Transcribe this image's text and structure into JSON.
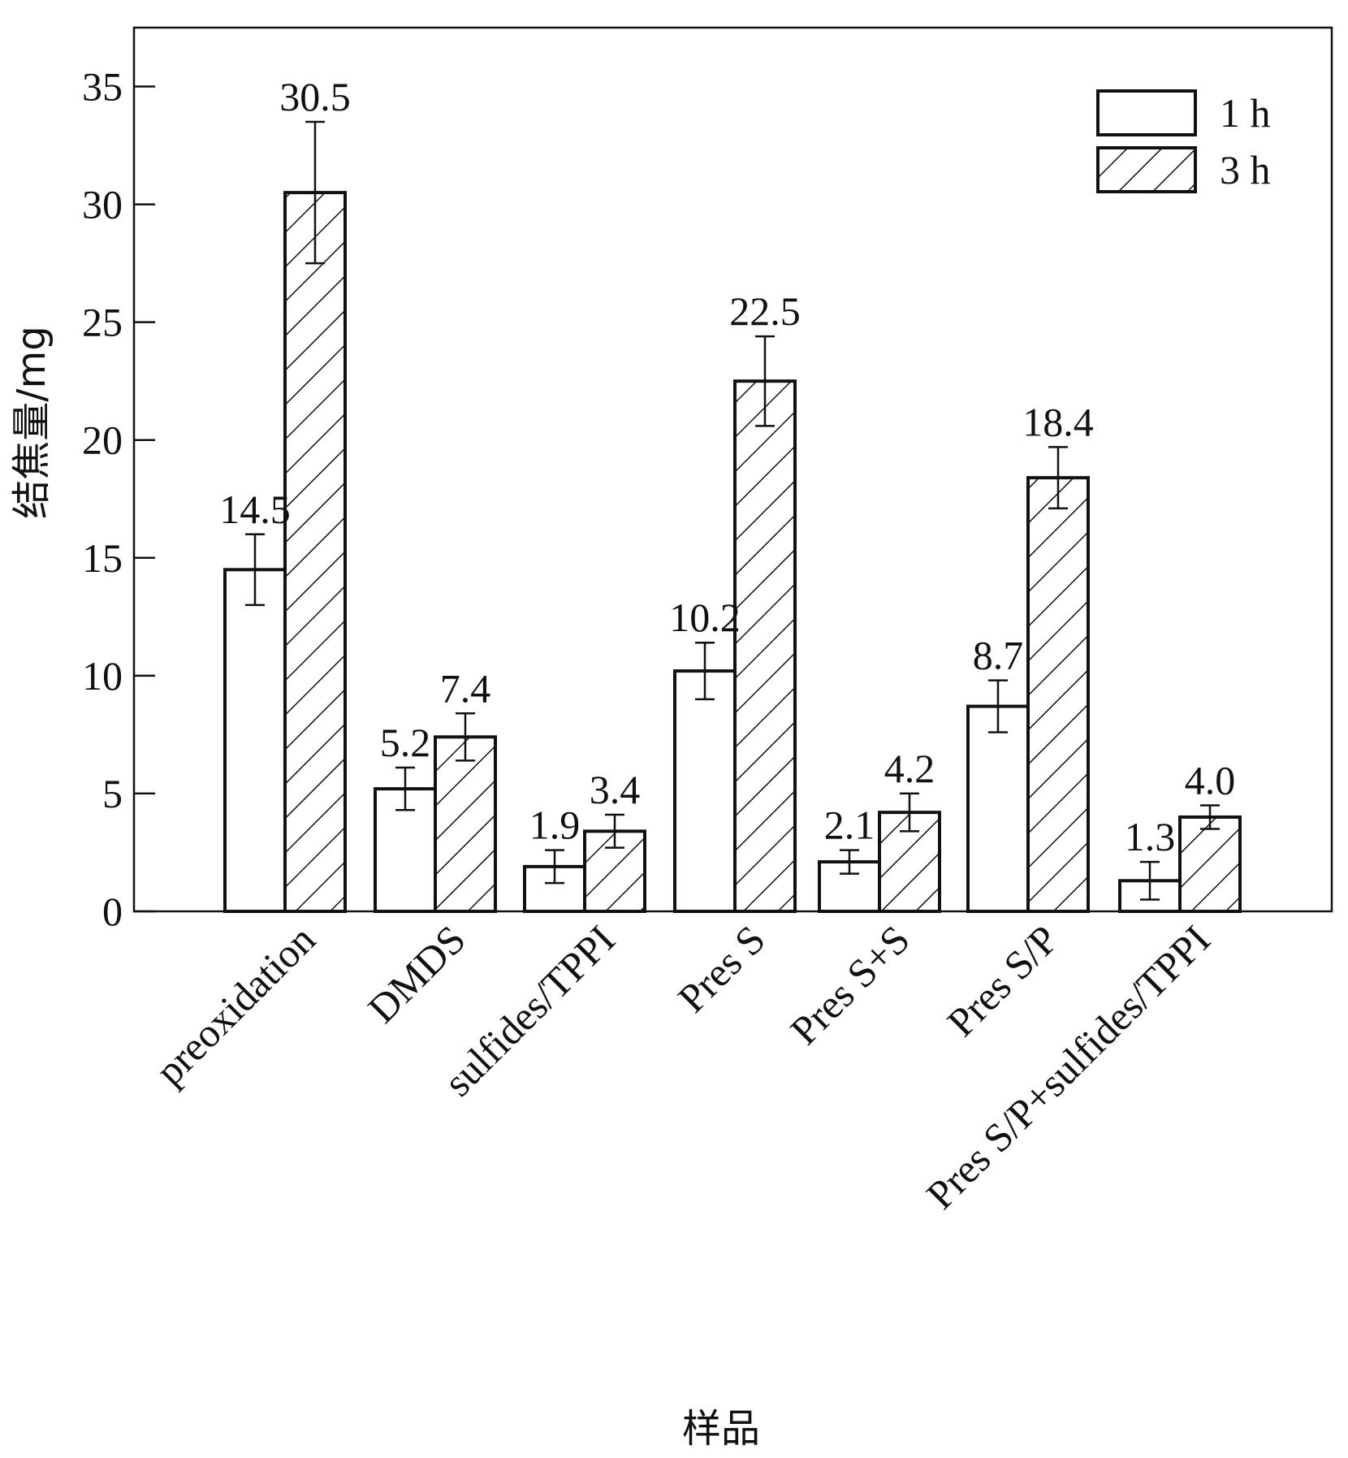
{
  "chart_data": {
    "type": "bar",
    "ylabel": "结焦量/mg",
    "xlabel": "样品",
    "ylim": [
      0,
      37.5
    ],
    "yticks": [
      0,
      5,
      10,
      15,
      20,
      25,
      30,
      35
    ],
    "categories": [
      "preoxidation",
      "DMDS",
      "sulfides/TPPI",
      "Pres S",
      "Pres S+S",
      "Pres S/P",
      "Pres S/P+sulfides/TPPI"
    ],
    "series": [
      {
        "name": "1 h",
        "pattern": "none",
        "values": [
          14.5,
          5.2,
          1.9,
          10.2,
          2.1,
          8.7,
          1.3
        ],
        "labels": [
          "14.5",
          "5.2",
          "1.9",
          "10.2",
          "2.1",
          "8.7",
          "1.3"
        ],
        "errors": [
          1.5,
          0.9,
          0.7,
          1.2,
          0.5,
          1.1,
          0.8
        ]
      },
      {
        "name": "3 h",
        "pattern": "diagonal-hatch",
        "values": [
          30.5,
          7.4,
          3.4,
          22.5,
          4.2,
          18.4,
          4.0
        ],
        "labels": [
          "30.5",
          "7.4",
          "3.4",
          "22.5",
          "4.2",
          "18.4",
          "4.0"
        ],
        "errors": [
          3.0,
          1.0,
          0.7,
          1.9,
          0.8,
          1.3,
          0.5
        ]
      }
    ],
    "legend_position": "top-right",
    "grid": false
  }
}
